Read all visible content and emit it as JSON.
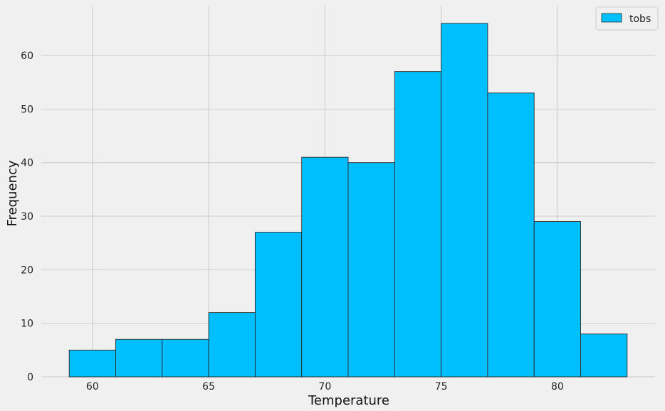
{
  "chart_data": {
    "type": "bar",
    "subtype": "histogram",
    "bin_edges": [
      59,
      61,
      63,
      65,
      67,
      69,
      71,
      73,
      75,
      77,
      79,
      81,
      83
    ],
    "values": [
      5,
      7,
      7,
      12,
      27,
      41,
      40,
      57,
      66,
      53,
      29,
      8
    ],
    "series": [
      {
        "name": "tobs",
        "values": [
          5,
          7,
          7,
          12,
          27,
          41,
          40,
          57,
          66,
          53,
          29,
          8
        ]
      }
    ],
    "xlabel": "Temperature",
    "ylabel": "Frequency",
    "xlim": [
      57.8,
      84.2
    ],
    "ylim": [
      0,
      69.3
    ],
    "xticks": [
      60,
      65,
      70,
      75,
      80
    ],
    "yticks": [
      0,
      10,
      20,
      30,
      40,
      50,
      60
    ],
    "grid": true,
    "legend": {
      "position": "top-right",
      "entries": [
        "tobs"
      ]
    },
    "colors": {
      "bar_fill": "#00bfff",
      "bar_edge": "#2b2b2b",
      "background": "#f0f0f0",
      "grid": "#cbcbcb"
    }
  }
}
